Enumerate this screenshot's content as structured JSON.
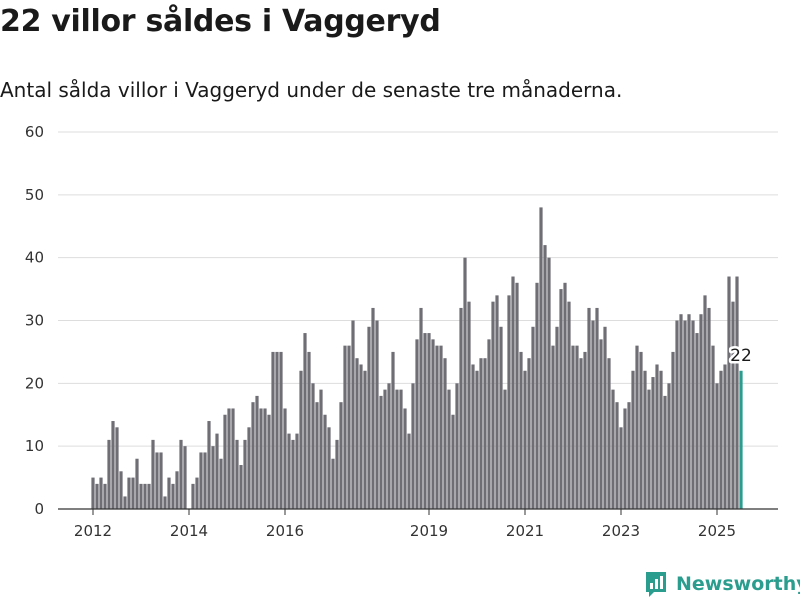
{
  "header": {
    "title": "22 villor såldes i Vaggeryd",
    "subtitle": "Antal sålda villor i Vaggeryd under de senaste tre månaderna."
  },
  "brand": {
    "name": "Newsworthy",
    "color": "#2a9d8f"
  },
  "chart_data": {
    "type": "bar",
    "title": "22 villor såldes i Vaggeryd",
    "subtitle": "Antal sålda villor i Vaggeryd under de senaste tre månaderna.",
    "xlabel": "",
    "ylabel": "",
    "ylim": [
      0,
      60
    ],
    "yticks": [
      0,
      10,
      20,
      30,
      40,
      50,
      60
    ],
    "xticks": [
      {
        "label": "2012",
        "index": 0
      },
      {
        "label": "2014",
        "index": 24
      },
      {
        "label": "2016",
        "index": 48
      },
      {
        "label": "2019",
        "index": 84
      },
      {
        "label": "2021",
        "index": 108
      },
      {
        "label": "2023",
        "index": 132
      },
      {
        "label": "2025",
        "index": 156
      }
    ],
    "grid": true,
    "bar_color": "#6f6e75",
    "highlight_color": "#2a9d8f",
    "highlight_label": "22",
    "values": [
      5,
      4,
      5,
      4,
      11,
      14,
      13,
      6,
      2,
      5,
      5,
      8,
      4,
      4,
      4,
      11,
      9,
      9,
      2,
      5,
      4,
      6,
      11,
      10,
      0,
      4,
      5,
      9,
      9,
      14,
      10,
      12,
      8,
      15,
      16,
      16,
      11,
      7,
      11,
      13,
      17,
      18,
      16,
      16,
      15,
      25,
      25,
      25,
      16,
      12,
      11,
      12,
      22,
      28,
      25,
      20,
      17,
      19,
      15,
      13,
      8,
      11,
      17,
      26,
      26,
      30,
      24,
      23,
      22,
      29,
      32,
      30,
      18,
      19,
      20,
      25,
      19,
      19,
      16,
      12,
      20,
      27,
      32,
      28,
      28,
      27,
      26,
      26,
      24,
      19,
      15,
      20,
      32,
      40,
      33,
      23,
      22,
      24,
      24,
      27,
      33,
      34,
      29,
      19,
      34,
      37,
      36,
      25,
      22,
      24,
      29,
      36,
      48,
      42,
      40,
      26,
      29,
      35,
      36,
      33,
      26,
      26,
      24,
      25,
      32,
      30,
      32,
      27,
      29,
      24,
      19,
      17,
      13,
      16,
      17,
      22,
      26,
      25,
      22,
      19,
      21,
      23,
      22,
      18,
      20,
      25,
      30,
      31,
      30,
      31,
      30,
      28,
      31,
      34,
      32,
      26,
      20,
      22,
      23,
      37,
      33,
      37,
      22
    ]
  }
}
